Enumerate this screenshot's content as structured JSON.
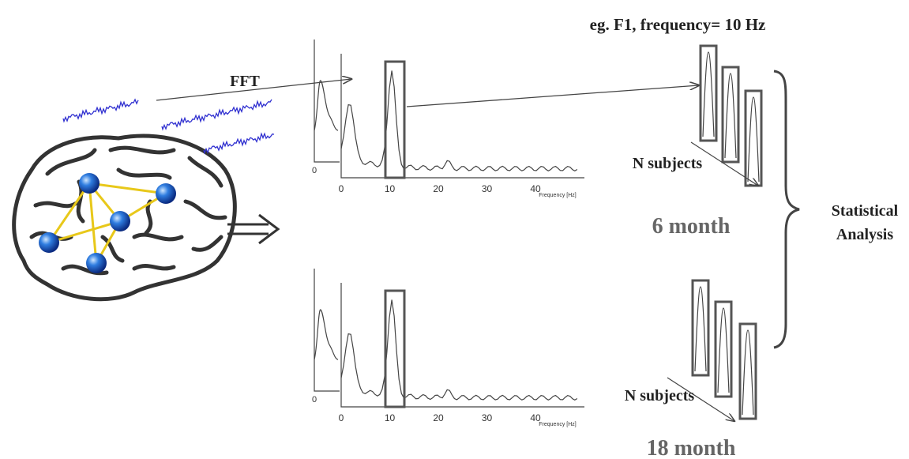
{
  "title": "eg. F1, frequency= 10 Hz",
  "fft_label": "FFT",
  "panels": [
    {
      "period": "6 month",
      "subjects": "N subjects",
      "inset_zero": "0",
      "x_ticks": [
        "0",
        "10",
        "20",
        "30",
        "40"
      ],
      "x_label": "Frequency [Hz]"
    },
    {
      "period": "18 month",
      "subjects": "N subjects",
      "inset_zero": "0",
      "x_ticks": [
        "0",
        "10",
        "20",
        "30",
        "40"
      ],
      "x_label": "Frequency [Hz]"
    }
  ],
  "analysis": [
    "Statistical",
    "Analysis"
  ]
}
